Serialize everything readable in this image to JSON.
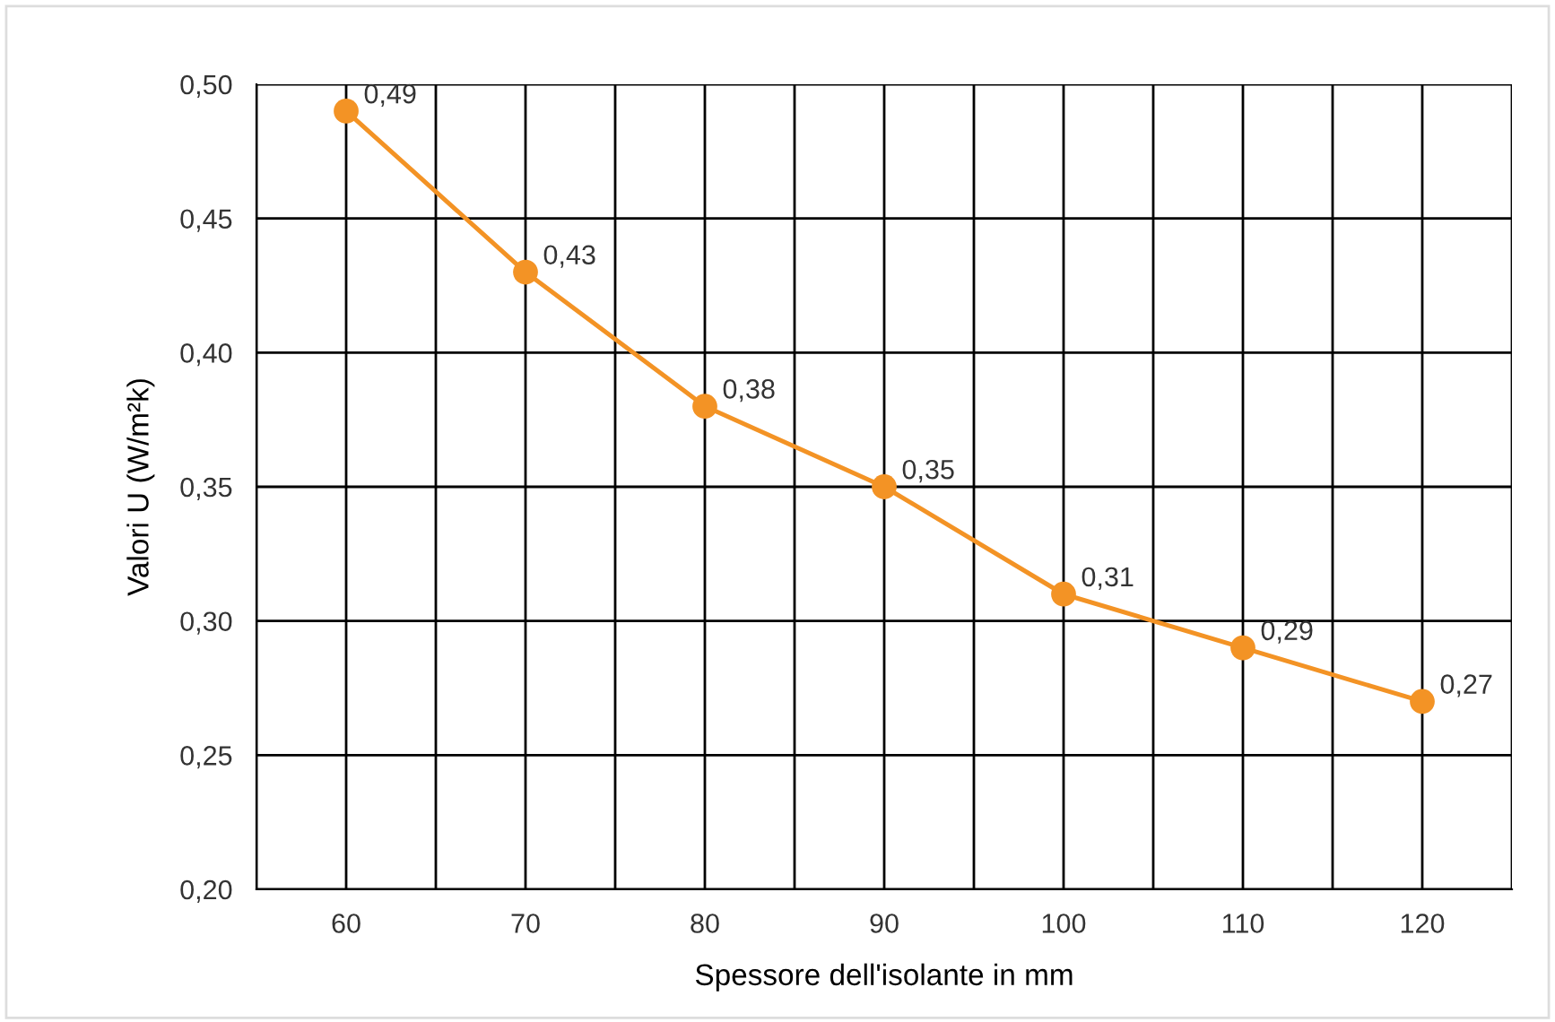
{
  "chart_data": {
    "type": "line",
    "xlabel": "Spessore dell'isolante in mm",
    "ylabel": "Valori U (W/m²k)",
    "x": [
      60,
      70,
      80,
      90,
      100,
      110,
      120
    ],
    "series": [
      {
        "color": "#f39325",
        "values": [
          0.49,
          0.43,
          0.38,
          0.35,
          0.31,
          0.29,
          0.27
        ],
        "value_labels": [
          "0,49",
          "0,43",
          "0,38",
          "0,35",
          "0,31",
          "0,29",
          "0,27"
        ]
      }
    ],
    "xlim": [
      55,
      125
    ],
    "xticks": [
      {
        "value": 55,
        "label": null
      },
      {
        "value": 60,
        "label": "60"
      },
      {
        "value": 65,
        "label": null
      },
      {
        "value": 70,
        "label": "70"
      },
      {
        "value": 75,
        "label": null
      },
      {
        "value": 80,
        "label": "80"
      },
      {
        "value": 85,
        "label": null
      },
      {
        "value": 90,
        "label": "90"
      },
      {
        "value": 95,
        "label": null
      },
      {
        "value": 100,
        "label": "100"
      },
      {
        "value": 105,
        "label": null
      },
      {
        "value": 110,
        "label": "110"
      },
      {
        "value": 115,
        "label": null
      },
      {
        "value": 120,
        "label": "120"
      },
      {
        "value": 125,
        "label": null
      }
    ],
    "ylim": [
      0.2,
      0.5
    ],
    "yticks": [
      {
        "value": 0.2,
        "label": "0,20"
      },
      {
        "value": 0.25,
        "label": "0,25"
      },
      {
        "value": 0.3,
        "label": "0,30"
      },
      {
        "value": 0.35,
        "label": "0,35"
      },
      {
        "value": 0.4,
        "label": "0,40"
      },
      {
        "value": 0.45,
        "label": "0,45"
      },
      {
        "value": 0.5,
        "label": "0,50"
      }
    ],
    "grid": true,
    "marker": "circle",
    "line_style": "solid"
  }
}
